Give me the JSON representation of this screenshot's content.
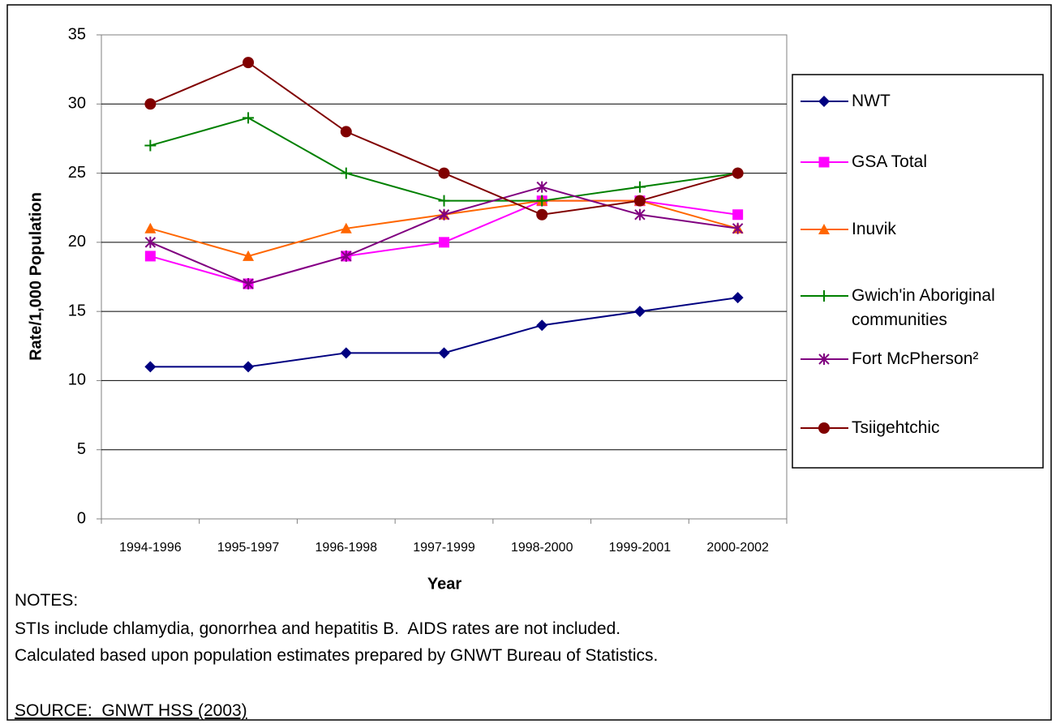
{
  "chart_data": {
    "type": "line",
    "x_label": "Year",
    "y_label": "Rate/1,000 Population",
    "categories": [
      "1994-1996",
      "1995-1997",
      "1996-1998",
      "1997-1999",
      "1998-2000",
      "1999-2001",
      "2000-2002"
    ],
    "series": [
      {
        "name": "NWT",
        "color": "#000080",
        "marker": "diamond",
        "values": [
          11,
          11,
          12,
          12,
          14,
          15,
          16
        ]
      },
      {
        "name": "GSA Total",
        "color": "#ff00ff",
        "marker": "square",
        "values": [
          19,
          17,
          19,
          20,
          23,
          23,
          22
        ]
      },
      {
        "name": "Inuvik",
        "color": "#ff6600",
        "marker": "triangle",
        "values": [
          21,
          19,
          21,
          22,
          23,
          23,
          21
        ]
      },
      {
        "name": "Gwich'in Aboriginal communities",
        "color": "#008000",
        "marker": "plus",
        "values": [
          27,
          29,
          25,
          23,
          23,
          24,
          25
        ]
      },
      {
        "name": "Fort McPherson²",
        "color": "#800080",
        "marker": "star",
        "values": [
          20,
          17,
          19,
          22,
          24,
          22,
          21
        ]
      },
      {
        "name": "Tsiigehtchic",
        "color": "#800000",
        "marker": "circle",
        "values": [
          30,
          33,
          28,
          25,
          22,
          23,
          25
        ]
      }
    ],
    "ylim": [
      0,
      35
    ],
    "yticks": [
      0,
      5,
      10,
      15,
      20,
      25,
      30,
      35
    ],
    "grid": true,
    "legend": "right"
  },
  "notes": {
    "heading": "NOTES:",
    "lines": [
      "STIs include chlamydia, gonorrhea and hepatitis B.  AIDS rates are not included.",
      "Calculated based upon population estimates prepared by GNWT Bureau of Statistics."
    ],
    "source": "SOURCE:  GNWT HSS (2003)"
  }
}
